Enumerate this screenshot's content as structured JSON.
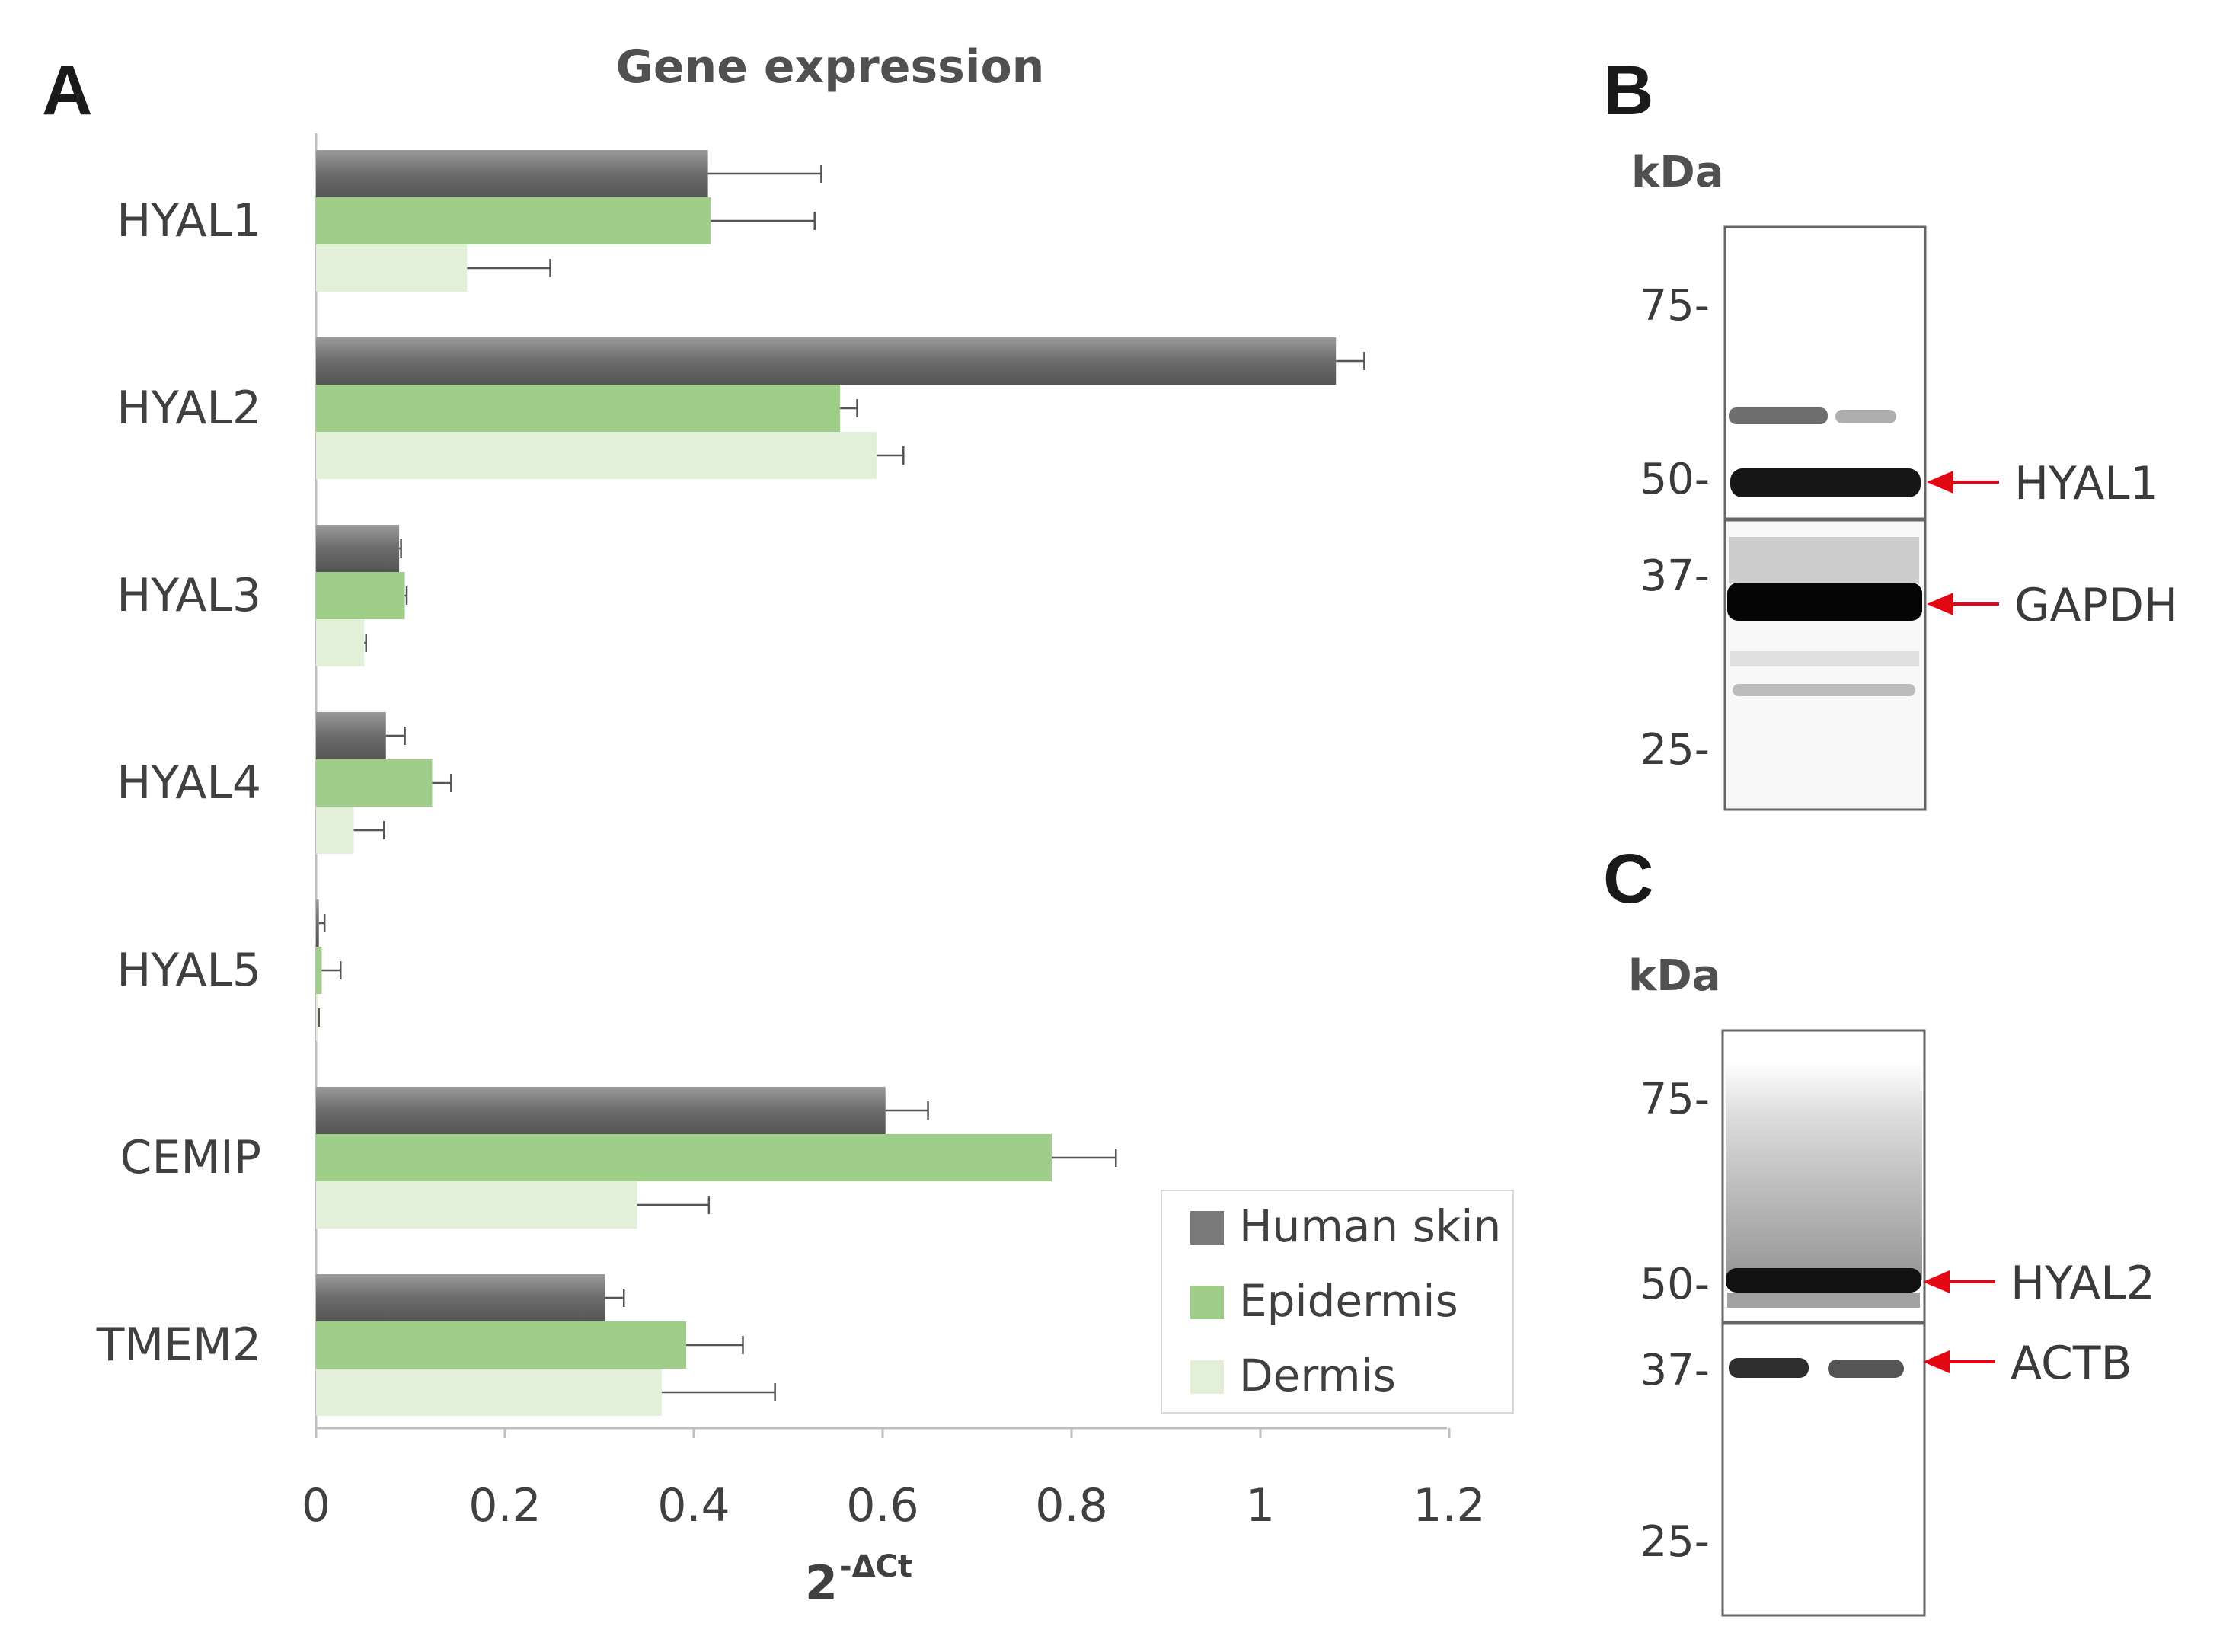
{
  "panels": {
    "a": "A",
    "b": "B",
    "c": "C"
  },
  "chart_data": {
    "type": "bar",
    "orientation": "horizontal",
    "title": "Gene expression",
    "xlabel_base": "2",
    "xlabel_sup": "-ΔCt",
    "ylabel": "",
    "xlim": [
      0,
      1.2
    ],
    "xticks": [
      0,
      0.2,
      0.4,
      0.6,
      0.8,
      1,
      1.2
    ],
    "xtick_labels": [
      "0",
      "0.2",
      "0.4",
      "0.6",
      "0.8",
      "1",
      "1.2"
    ],
    "grid": false,
    "legend_position": "bottom-right",
    "categories": [
      "HYAL1",
      "HYAL2",
      "HYAL3",
      "HYAL4",
      "HYAL5",
      "CEMIP",
      "TMEM2"
    ],
    "series": [
      {
        "name": "Human skin",
        "color": "#7a7a7a",
        "values": [
          0.415,
          1.08,
          0.088,
          0.074,
          0.003,
          0.603,
          0.306
        ],
        "errors": [
          0.12,
          0.03,
          0.002,
          0.02,
          0.006,
          0.045,
          0.02
        ]
      },
      {
        "name": "Epidermis",
        "color": "#9fce88",
        "values": [
          0.418,
          0.555,
          0.094,
          0.123,
          0.006,
          0.779,
          0.392
        ],
        "errors": [
          0.11,
          0.018,
          0.002,
          0.02,
          0.02,
          0.068,
          0.06
        ]
      },
      {
        "name": "Dermis",
        "color": "#e2efd9",
        "values": [
          0.16,
          0.594,
          0.051,
          0.04,
          0.002,
          0.34,
          0.366
        ],
        "errors": [
          0.088,
          0.028,
          0.002,
          0.032,
          0.001,
          0.076,
          0.12
        ]
      }
    ]
  },
  "blot_b": {
    "unit": "kDa",
    "markers": [
      "75-",
      "50-",
      "37-",
      "25-"
    ],
    "targets": [
      "HYAL1",
      "GAPDH"
    ]
  },
  "blot_c": {
    "unit": "kDa",
    "markers": [
      "75-",
      "50-",
      "37-",
      "25-"
    ],
    "targets": [
      "HYAL2",
      "ACTB"
    ]
  },
  "colors": {
    "arrow": "#e30613",
    "axis": "#bfbfbf",
    "text": "#404040"
  }
}
